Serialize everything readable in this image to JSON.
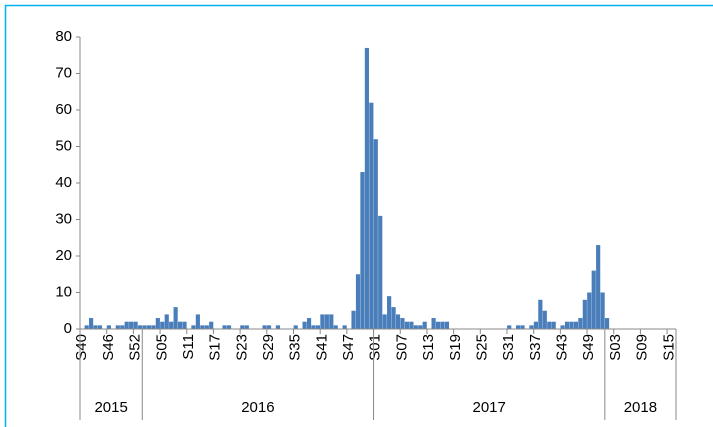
{
  "chart_data": {
    "type": "bar",
    "color": "#4a7ebb",
    "categories": [
      "S40",
      null,
      null,
      null,
      null,
      null,
      "S46",
      null,
      null,
      null,
      null,
      null,
      "S52",
      null,
      null,
      null,
      null,
      null,
      "S05",
      null,
      null,
      null,
      null,
      null,
      "S11",
      null,
      null,
      null,
      null,
      null,
      "S17",
      null,
      null,
      null,
      null,
      null,
      "S23",
      null,
      null,
      null,
      null,
      null,
      "S29",
      null,
      null,
      null,
      null,
      null,
      "S35",
      null,
      null,
      null,
      null,
      null,
      "S41",
      null,
      null,
      null,
      null,
      null,
      "S47",
      null,
      null,
      null,
      null,
      null,
      "S01",
      null,
      null,
      null,
      null,
      null,
      "S07",
      null,
      null,
      null,
      null,
      null,
      "S13",
      null,
      null,
      null,
      null,
      null,
      "S19",
      null,
      null,
      null,
      null,
      null,
      "S25",
      null,
      null,
      null,
      null,
      null,
      "S31",
      null,
      null,
      null,
      null,
      null,
      "S37",
      null,
      null,
      null,
      null,
      null,
      "S43",
      null,
      null,
      null,
      null,
      null,
      "S49",
      null,
      null,
      null,
      null,
      null,
      "S03",
      null,
      null,
      null,
      null,
      null,
      "S09",
      null,
      null,
      null,
      null,
      null,
      "S15",
      null
    ],
    "values": [
      0,
      1,
      3,
      1,
      1,
      0,
      1,
      0,
      1,
      1,
      2,
      2,
      2,
      1,
      1,
      1,
      1,
      3,
      2,
      4,
      2,
      6,
      2,
      2,
      0,
      1,
      4,
      1,
      1,
      2,
      0,
      0,
      1,
      1,
      0,
      0,
      1,
      1,
      0,
      0,
      0,
      1,
      1,
      0,
      1,
      0,
      0,
      0,
      1,
      0,
      2,
      3,
      1,
      1,
      4,
      4,
      4,
      1,
      0,
      1,
      0,
      5,
      15,
      43,
      77,
      62,
      52,
      31,
      4,
      9,
      6,
      4,
      3,
      2,
      2,
      1,
      1,
      2,
      0,
      3,
      2,
      2,
      2,
      0,
      0,
      0,
      0,
      0,
      0,
      0,
      0,
      0,
      0,
      0,
      0,
      0,
      1,
      0,
      1,
      1,
      0,
      1,
      2,
      8,
      5,
      2,
      2,
      0,
      1,
      2,
      2,
      2,
      3,
      8,
      10,
      16,
      23,
      10,
      3,
      0,
      0,
      0,
      0,
      0,
      0,
      0,
      0,
      0,
      0,
      0,
      0,
      0,
      0,
      0
    ],
    "groups": [
      {
        "label": "2015",
        "count": 14
      },
      {
        "label": "2016",
        "count": 52
      },
      {
        "label": "2017",
        "count": 52
      },
      {
        "label": "2018",
        "count": 16
      }
    ],
    "ylim": [
      0,
      80
    ],
    "yticks": [
      0,
      10,
      20,
      30,
      40,
      50,
      60,
      70,
      80
    ],
    "grid": false
  }
}
